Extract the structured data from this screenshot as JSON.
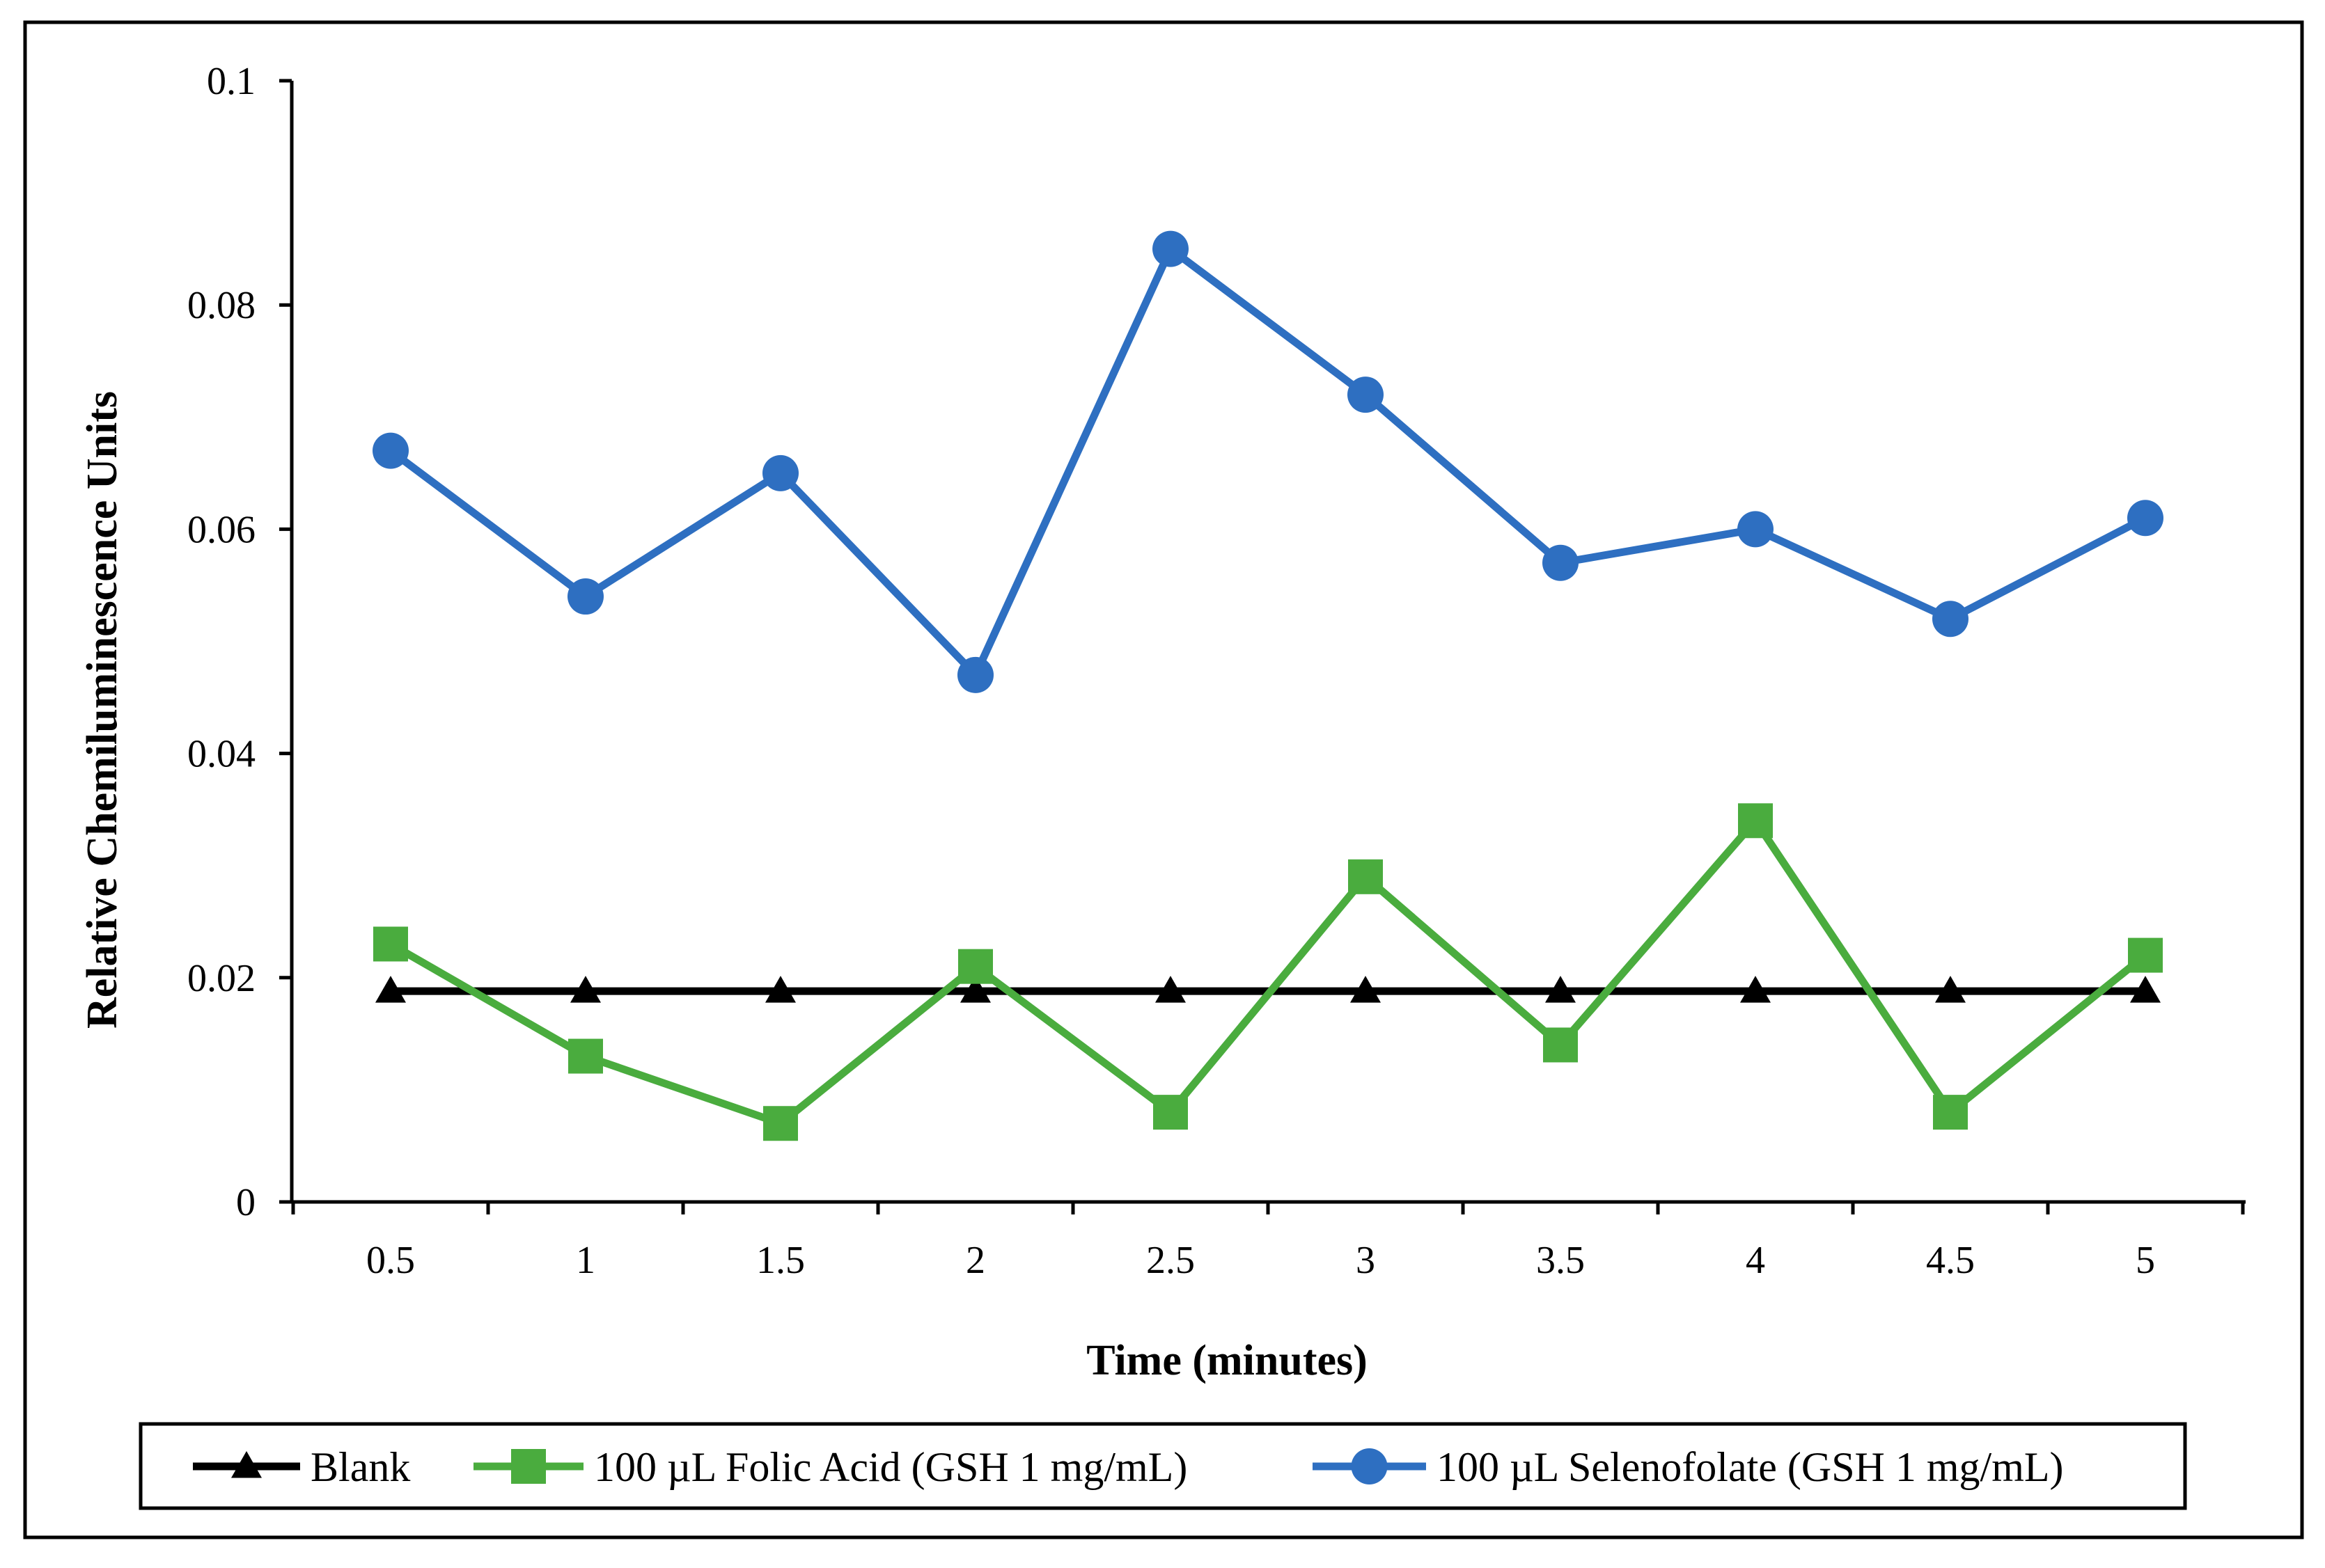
{
  "chart_data": {
    "type": "line",
    "title": "",
    "xlabel": "Time (minutes)",
    "ylabel": "Relative Chemiluminescence Units",
    "categories": [
      "0.5",
      "1",
      "1.5",
      "2",
      "2.5",
      "3",
      "3.5",
      "4",
      "4.5",
      "5"
    ],
    "ylim": [
      0,
      0.1
    ],
    "yticks": [
      "0",
      "0.02",
      "0.04",
      "0.06",
      "0.08",
      "0.1"
    ],
    "grid": false,
    "legend_position": "bottom",
    "series": [
      {
        "name": "Blank",
        "marker": "triangle",
        "color": "#000000",
        "values": [
          0.0188,
          0.0188,
          0.0188,
          0.0188,
          0.0188,
          0.0188,
          0.0188,
          0.0188,
          0.0188,
          0.0188
        ]
      },
      {
        "name": "100 µL Folic Acid (GSH 1 mg/mL)",
        "marker": "square",
        "color": "#4aac3e",
        "values": [
          0.023,
          0.013,
          0.007,
          0.021,
          0.008,
          0.029,
          0.014,
          0.034,
          0.008,
          0.022
        ]
      },
      {
        "name": "100 µL Selenofolate (GSH 1 mg/mL)",
        "marker": "circle",
        "color": "#2e6fc1",
        "values": [
          0.067,
          0.054,
          0.065,
          0.047,
          0.085,
          0.072,
          0.057,
          0.06,
          0.052,
          0.061
        ]
      }
    ]
  }
}
